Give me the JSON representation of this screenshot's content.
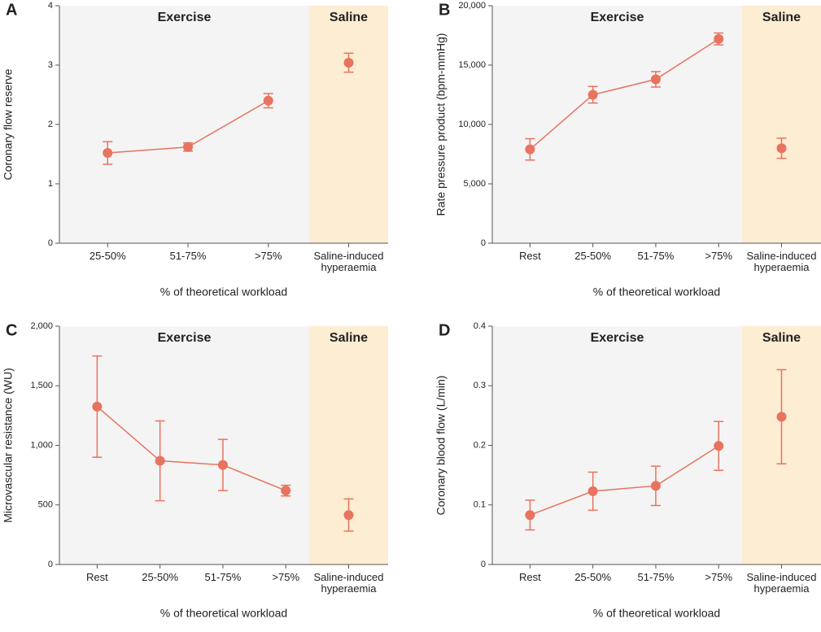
{
  "chart_data": [
    {
      "type": "line",
      "label": "A",
      "ylabel": "Coronary flow reserve",
      "xlabel": "% of theoretical workload",
      "categories": [
        "25-50%",
        "51-75%",
        ">75%",
        "Saline-induced hyperaemia"
      ],
      "ylim": [
        0,
        4
      ],
      "yticks": [
        0,
        1,
        2,
        3,
        4
      ],
      "series": [
        {
          "name": "Exercise",
          "color": "#e8735f",
          "region_color": "#f4f4f4",
          "values": [
            1.52,
            1.62,
            2.4,
            null
          ],
          "errors": [
            0.19,
            0.07,
            0.12,
            null
          ]
        },
        {
          "name": "Saline",
          "color": "#e8735f",
          "region_color": "#fdedd3",
          "values": [
            null,
            null,
            null,
            3.04
          ],
          "errors": [
            null,
            null,
            null,
            0.16
          ]
        }
      ]
    },
    {
      "type": "line",
      "label": "B",
      "ylabel": "Rate pressure product (bpm-mmHg)",
      "xlabel": "% of theoretical workload",
      "categories": [
        "Rest",
        "25-50%",
        "51-75%",
        ">75%",
        "Saline-induced hyperaemia"
      ],
      "ylim": [
        0,
        20000
      ],
      "yticks": [
        0,
        {
          "value": 5000,
          "label": "5,000"
        },
        {
          "value": 10000,
          "label": "10,000"
        },
        {
          "value": 15000,
          "label": "15,000"
        },
        {
          "value": 20000,
          "label": "20,000"
        }
      ],
      "series": [
        {
          "name": "Exercise",
          "color": "#e8735f",
          "region_color": "#f4f4f4",
          "values": [
            7900,
            12500,
            13800,
            17200,
            null
          ],
          "errors": [
            900,
            700,
            650,
            500,
            null
          ]
        },
        {
          "name": "Saline",
          "color": "#e8735f",
          "region_color": "#fdedd3",
          "values": [
            null,
            null,
            null,
            null,
            8000
          ],
          "errors": [
            null,
            null,
            null,
            null,
            850
          ]
        }
      ]
    },
    {
      "type": "line",
      "label": "C",
      "ylabel": "Microvascular resistance (WU)",
      "xlabel": "% of theoretical workload",
      "categories": [
        "Rest",
        "25-50%",
        "51-75%",
        ">75%",
        "Saline-induced hyperaemia"
      ],
      "ylim": [
        0,
        2000
      ],
      "yticks": [
        0,
        500,
        {
          "value": 1000,
          "label": "1,000"
        },
        {
          "value": 1500,
          "label": "1,500"
        },
        {
          "value": 2000,
          "label": "2,000"
        }
      ],
      "series": [
        {
          "name": "Exercise",
          "color": "#e8735f",
          "region_color": "#f4f4f4",
          "values": [
            1325,
            870,
            835,
            620,
            null
          ],
          "errors": [
            425,
            335,
            215,
            45,
            null
          ]
        },
        {
          "name": "Saline",
          "color": "#e8735f",
          "region_color": "#fdedd3",
          "values": [
            null,
            null,
            null,
            null,
            415
          ],
          "errors": [
            null,
            null,
            null,
            null,
            135
          ]
        }
      ]
    },
    {
      "type": "line",
      "label": "D",
      "ylabel": "Coronary blood flow (L/min)",
      "xlabel": "% of theoretical workload",
      "categories": [
        "Rest",
        "25-50%",
        "51-75%",
        ">75%",
        "Saline-induced hyperaemia"
      ],
      "ylim": [
        0,
        0.4
      ],
      "yticks": [
        0,
        0.1,
        0.2,
        0.3,
        0.4
      ],
      "series": [
        {
          "name": "Exercise",
          "color": "#e8735f",
          "region_color": "#f4f4f4",
          "values": [
            0.083,
            0.123,
            0.132,
            0.199,
            null
          ],
          "errors": [
            0.025,
            0.032,
            0.033,
            0.041,
            null
          ]
        },
        {
          "name": "Saline",
          "color": "#e8735f",
          "region_color": "#fdedd3",
          "values": [
            null,
            null,
            null,
            null,
            0.248
          ],
          "errors": [
            null,
            null,
            null,
            null,
            0.079
          ]
        }
      ]
    }
  ]
}
